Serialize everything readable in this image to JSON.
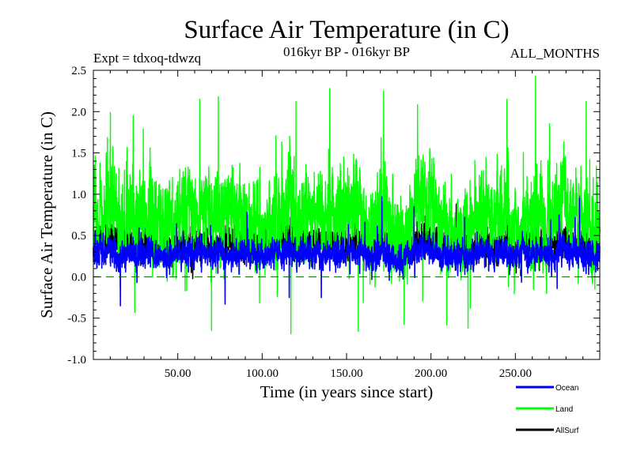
{
  "chart_data": {
    "type": "line",
    "title": "Surface Air Temperature (in C)",
    "subtitle_left": "Expt = tdxoq-tdwzq",
    "subtitle_center": "016kyr BP - 016kyr BP",
    "subtitle_right": "ALL_MONTHS",
    "xlabel": "Time (in years since start)",
    "ylabel": "Surface Air Temperature (in C)",
    "xlim": [
      0,
      300
    ],
    "ylim": [
      -1.0,
      2.5
    ],
    "x_ticks": [
      50,
      100,
      150,
      200,
      250
    ],
    "x_tick_labels": [
      "50.00",
      "100.00",
      "150.00",
      "200.00",
      "250.00"
    ],
    "y_ticks": [
      -1.0,
      -0.5,
      0.0,
      0.5,
      1.0,
      1.5,
      2.0,
      2.5
    ],
    "y_tick_labels": [
      "-1.0",
      "-0.5",
      "0.0",
      "0.5",
      "1.0",
      "1.5",
      "2.0",
      "2.5"
    ],
    "reference_line": {
      "y": 0.0,
      "style": "dashed",
      "color": "#006400"
    },
    "legend_position": "bottom-right, below plot",
    "time_resolution": "monthly",
    "series": [
      {
        "name": "Land",
        "color": "#00ff00",
        "mean": 0.75,
        "min_approx": -0.67,
        "max_approx": 2.43,
        "peaks": [
          [
            63,
            2.15
          ],
          [
            74,
            2.18
          ],
          [
            120,
            2.12
          ],
          [
            140,
            2.28
          ],
          [
            172,
            2.25
          ],
          [
            245,
            2.15
          ],
          [
            262,
            2.43
          ],
          [
            292,
            2.12
          ]
        ],
        "troughs": [
          [
            70,
            -0.65
          ],
          [
            117,
            -0.69
          ],
          [
            157,
            -0.66
          ],
          [
            222,
            -0.62
          ]
        ]
      },
      {
        "name": "Ocean",
        "color": "#0000ff",
        "mean": 0.28,
        "min_approx": -0.36,
        "max_approx": 0.98,
        "peaks": [
          [
            91,
            0.78
          ],
          [
            171,
            0.97
          ],
          [
            190,
            0.85
          ],
          [
            220,
            0.72
          ],
          [
            288,
            0.95
          ]
        ],
        "troughs": [
          [
            16,
            -0.35
          ],
          [
            78,
            -0.33
          ],
          [
            116,
            -0.25
          ],
          [
            135,
            -0.25
          ]
        ]
      },
      {
        "name": "AllSurf",
        "color": "#000000",
        "mean": 0.4,
        "min_approx": -0.25,
        "max_approx": 1.0,
        "peaks": [
          [
            171,
            1.0
          ],
          [
            215,
            0.88
          ],
          [
            288,
            0.98
          ]
        ]
      }
    ]
  }
}
